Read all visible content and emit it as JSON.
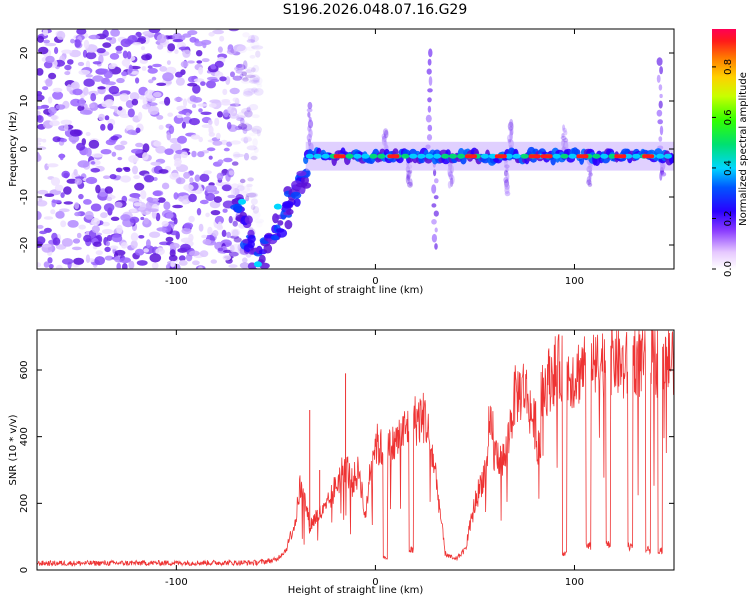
{
  "page": {
    "title": "S196.2026.048.07.16.G29"
  },
  "chart_data": [
    {
      "type": "heatmap",
      "title": "",
      "xlabel": "Height of straight line (km)",
      "ylabel": "Frequency (Hz)",
      "xlim": [
        -170,
        150
      ],
      "ylim": [
        -25,
        25
      ],
      "xticks": [
        -100,
        0,
        100
      ],
      "yticks": [
        -20,
        -10,
        0,
        10,
        20
      ],
      "xtick_labels": [
        "-100",
        "0",
        "100"
      ],
      "ytick_labels": [
        "-20",
        "-10",
        "0",
        "10",
        "20"
      ],
      "colorbar": {
        "label": "Normalized spectral amplitude",
        "range": [
          0.0,
          0.95
        ],
        "ticks": [
          0.0,
          0.2,
          0.4,
          0.6,
          0.8
        ],
        "tick_labels": [
          "0.0",
          "0.2",
          "0.4",
          "0.6",
          "0.8"
        ]
      },
      "features": {
        "noise_region_x": [
          -170,
          -58
        ],
        "signal_band_x": [
          -35,
          150
        ],
        "signal_band_freq": -1.5,
        "descending_branch": [
          [
            -70,
            -11
          ],
          [
            -60,
            -24
          ],
          [
            -45,
            -13
          ],
          [
            -35,
            -5
          ]
        ]
      }
    },
    {
      "type": "line",
      "title": "",
      "xlabel": "Height of straight line (km)",
      "ylabel": "SNR (10 * v/v)",
      "xlim": [
        -170,
        150
      ],
      "ylim": [
        0,
        720
      ],
      "xticks": [
        -100,
        0,
        100
      ],
      "yticks": [
        0,
        200,
        400,
        600
      ],
      "xtick_labels": [
        "-100",
        "0",
        "100"
      ],
      "ytick_labels": [
        "0",
        "200",
        "400",
        "600"
      ],
      "color": "#ee3333",
      "profile_x": [
        -170,
        -60,
        -50,
        -45,
        -40,
        -38,
        -35,
        -33,
        -30,
        -25,
        -20,
        -15,
        -12,
        -8,
        -5,
        -2,
        0,
        5,
        10,
        15,
        20,
        25,
        30,
        35,
        40,
        45,
        50,
        55,
        60,
        65,
        70,
        75,
        80,
        85,
        90,
        95,
        100,
        105,
        110,
        115,
        120,
        125,
        130,
        135,
        140,
        145,
        150
      ],
      "profile_y": [
        20,
        22,
        30,
        60,
        150,
        250,
        200,
        130,
        160,
        180,
        250,
        320,
        260,
        300,
        150,
        350,
        380,
        350,
        380,
        420,
        450,
        460,
        300,
        50,
        30,
        60,
        200,
        300,
        350,
        330,
        520,
        550,
        430,
        550,
        600,
        600,
        580,
        620,
        600,
        630,
        640,
        600,
        640,
        610,
        630,
        620,
        640
      ],
      "dropouts": [
        [
          5,
          40
        ],
        [
          18,
          60
        ],
        [
          58,
          420
        ],
        [
          82,
          380
        ],
        [
          95,
          50
        ],
        [
          107,
          70
        ],
        [
          117,
          80
        ],
        [
          128,
          70
        ],
        [
          137,
          60
        ],
        [
          143,
          60
        ]
      ]
    }
  ]
}
